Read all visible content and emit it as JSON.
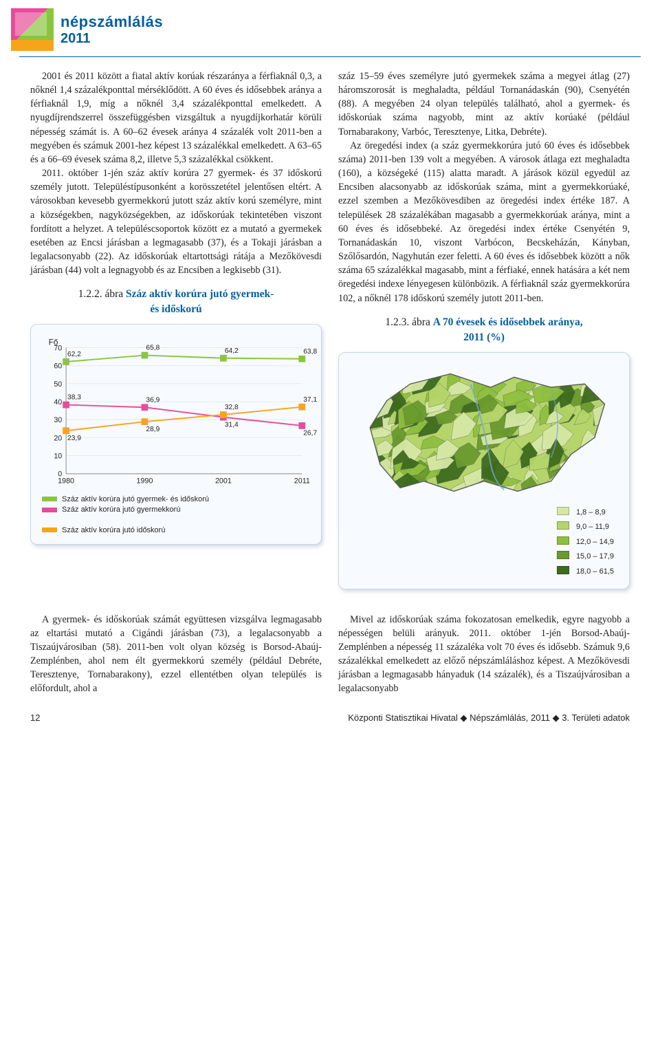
{
  "logo": {
    "line1": "népszámlálás",
    "line2": "2011"
  },
  "para_left_1": "2001 és 2011 között a fiatal aktív korúak részaránya a férfiaknál 0,3, a nőknél 1,4 százalékponttal mérséklődött. A 60 éves és idősebbek aránya a férfiaknál 1,9, míg a nőknél 3,4 százalékponttal emelkedett. A nyugdíjrendszerrel összefüggésben vizsgáltuk a nyugdíjkorhatár körüli népesség számát is. A 60–62 évesek aránya 4 százalék volt 2011-ben a megyében és számuk 2001-hez képest 13 százalékkal emelkedett. A 63–65 és a 66–69 évesek száma 8,2, illetve 5,3 százalékkal csökkent.",
  "para_left_2": "2011. október 1-jén száz aktív korúra 27 gyermek- és 37 időskorú személy jutott. Településtípusonként a korösszetétel jelentősen eltért. A városokban kevesebb gyermekkorú jutott száz aktív korú személyre, mint a községekben, nagyközségekben, az időskorúak tekintetében viszont fordított a helyzet. A településcsoportok között ez a mutató a gyermekek esetében az Encsi járásban a legmagasabb (37), és a Tokaji járásban a legalacsonyabb (22). Az időskorúak eltartottsági rátája a Mezőkövesdi járásban (44) volt a legnagyobb és az Encsiben a legkisebb (31).",
  "para_right_1": "száz 15–59 éves személyre jutó gyermekek száma a megyei átlag (27) háromszorosát is meghaladta, például Tornanádaskán (90), Csenyétén (88). A megyében 24 olyan település található, ahol a gyermek- és időskorúak száma nagyobb, mint az aktív korúaké (például Tornabarakony, Varbóc, Teresztenye, Litka, Debréte).",
  "para_right_2": "Az öregedési index (a száz gyermekkorúra jutó 60 éves és idősebbek száma) 2011-ben 139 volt a megyében. A városok átlaga ezt meghaladta (160), a községeké (115) alatta maradt. A járások közül egyedül az Encsiben alacsonyabb az időskorúak száma, mint a gyermekkorúaké, ezzel szemben a Mezőkövesdiben az öregedési index értéke 187. A települések 28 százalékában magasabb a gyermekkorúak aránya, mint a 60 éves és idősebbeké. Az öregedési index értéke Csenyétén 9, Tornanádaskán 10, viszont Varbócon, Becskeházán, Kányban, Szőlősardón, Nagyhután ezer feletti. A 60 éves és idősebbek között a nők száma 65 százalékkal magasabb, mint a férfiaké, ennek hatására a két nem öregedési indexe lényegesen különbözik. A férfiaknál száz gyermekkorúra 102, a nőknél 178 időskorú személy jutott 2011-ben.",
  "para_bottom_left": "A gyermek- és időskorúak számát együttesen vizsgálva legmagasabb az eltartási mutató a Cigándi járásban (73), a legalacsonyabb a Tiszaújvárosiban (58). 2011-ben volt olyan község is Borsod-Abaúj-Zemplénben, ahol nem élt gyermekkorú személy (például Debréte, Teresztenye, Tornabarakony), ezzel ellentétben olyan település is előfordult, ahol a",
  "para_bottom_right": "Mivel az időskorúak száma fokozatosan emelkedik, egyre nagyobb a népességen belüli arányuk. 2011. október 1-jén Borsod-Abaúj-Zemplénben a népesség 11 százaléka volt 70 éves és idősebb. Számuk 9,6 százalékkal emelkedett az előző népszámláláshoz képest. A Mezőkövesdi járásban a legmagasabb hányaduk (14 százalék), és a Tiszaújvárosiban a legalacsonyabb",
  "fig1": {
    "number": "1.2.2. ábra",
    "title_l1": "Száz aktív korúra jutó gyermek-",
    "title_l2": "és időskorú",
    "type": "line",
    "ylabel": "Fő",
    "ylim": [
      0,
      70
    ],
    "ytick_step": 10,
    "categories": [
      "1980",
      "1990",
      "2001",
      "2011"
    ],
    "series": [
      {
        "name": "Száz aktív korúra jutó gyermek- és időskorú",
        "color": "#8bc53f",
        "values": [
          62.2,
          65.8,
          64.2,
          63.8
        ],
        "labels": [
          "62,2",
          "65,8",
          "64,2",
          "63,8"
        ]
      },
      {
        "name": "Száz aktív korúra jutó gyermekkorú",
        "color": "#e84b9a",
        "values": [
          38.3,
          36.9,
          31.4,
          26.7
        ],
        "labels": [
          "38,3",
          "36,9",
          "31,4",
          "26,7"
        ]
      },
      {
        "name": "Száz aktív korúra jutó időskorú",
        "color": "#f7a41a",
        "values": [
          23.9,
          28.9,
          32.8,
          37.1
        ],
        "labels": [
          "23,9",
          "28,9",
          "32,8",
          "37,1"
        ]
      }
    ],
    "marker_size": 5,
    "line_width": 2,
    "axis_color": "#888",
    "label_fontsize": 11
  },
  "fig2": {
    "number": "1.2.3. ábra",
    "title_l1": "A 70 évesek és idősebbek aránya,",
    "title_l2": "2011 (%)",
    "type": "choropleth-map",
    "legend": [
      {
        "color": "#d6e8a6",
        "label": "1,8 –   8,9"
      },
      {
        "color": "#b5d56a",
        "label": "9,0 – 11,9"
      },
      {
        "color": "#8fbf3f",
        "label": "12,0 – 14,9"
      },
      {
        "color": "#6a9a2e",
        "label": "15,0 – 17,9"
      },
      {
        "color": "#3e6b1e",
        "label": "18,0 – 61,5"
      }
    ],
    "border_color": "#5a5a5a",
    "river_color": "#6fa8d6"
  },
  "footer": {
    "page": "12",
    "src": "Központi Statisztikai Hivatal",
    "mid": "Népszámlálás, 2011",
    "right": "3. Területi adatok"
  }
}
